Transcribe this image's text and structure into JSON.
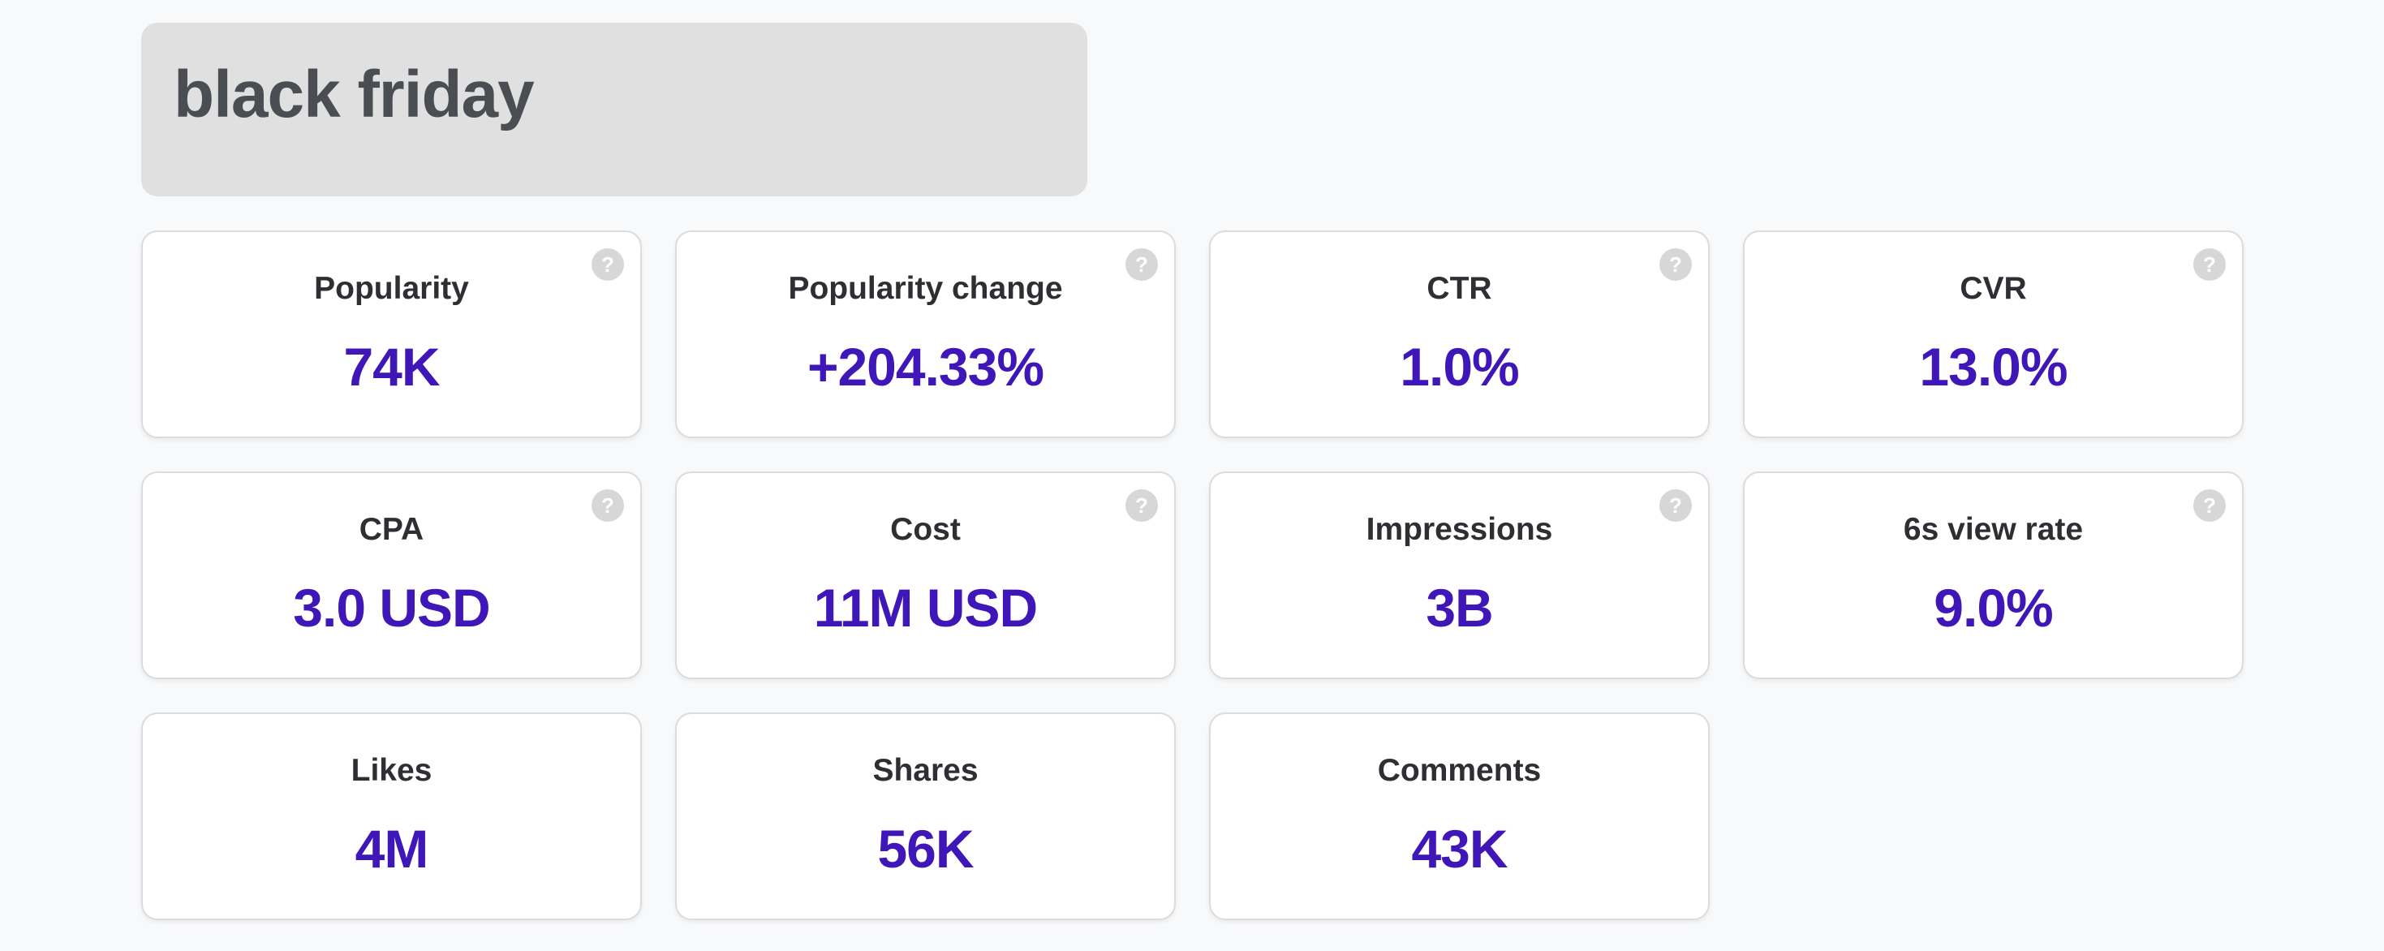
{
  "header": {
    "title": "black friday"
  },
  "help_icon_glyph": "?",
  "colors": {
    "value_accent": "#3f17b8",
    "header_background": "#e0e0e0",
    "page_background": "#f8f9fb"
  },
  "metrics": [
    {
      "label": "Popularity",
      "value": "74K",
      "has_help": true
    },
    {
      "label": "Popularity change",
      "value": "+204.33%",
      "has_help": true
    },
    {
      "label": "CTR",
      "value": "1.0%",
      "has_help": true
    },
    {
      "label": "CVR",
      "value": "13.0%",
      "has_help": true
    },
    {
      "label": "CPA",
      "value": "3.0 USD",
      "has_help": true
    },
    {
      "label": "Cost",
      "value": "11M USD",
      "has_help": true
    },
    {
      "label": "Impressions",
      "value": "3B",
      "has_help": true
    },
    {
      "label": "6s view rate",
      "value": "9.0%",
      "has_help": true
    },
    {
      "label": "Likes",
      "value": "4M",
      "has_help": false
    },
    {
      "label": "Shares",
      "value": "56K",
      "has_help": false
    },
    {
      "label": "Comments",
      "value": "43K",
      "has_help": false
    }
  ]
}
